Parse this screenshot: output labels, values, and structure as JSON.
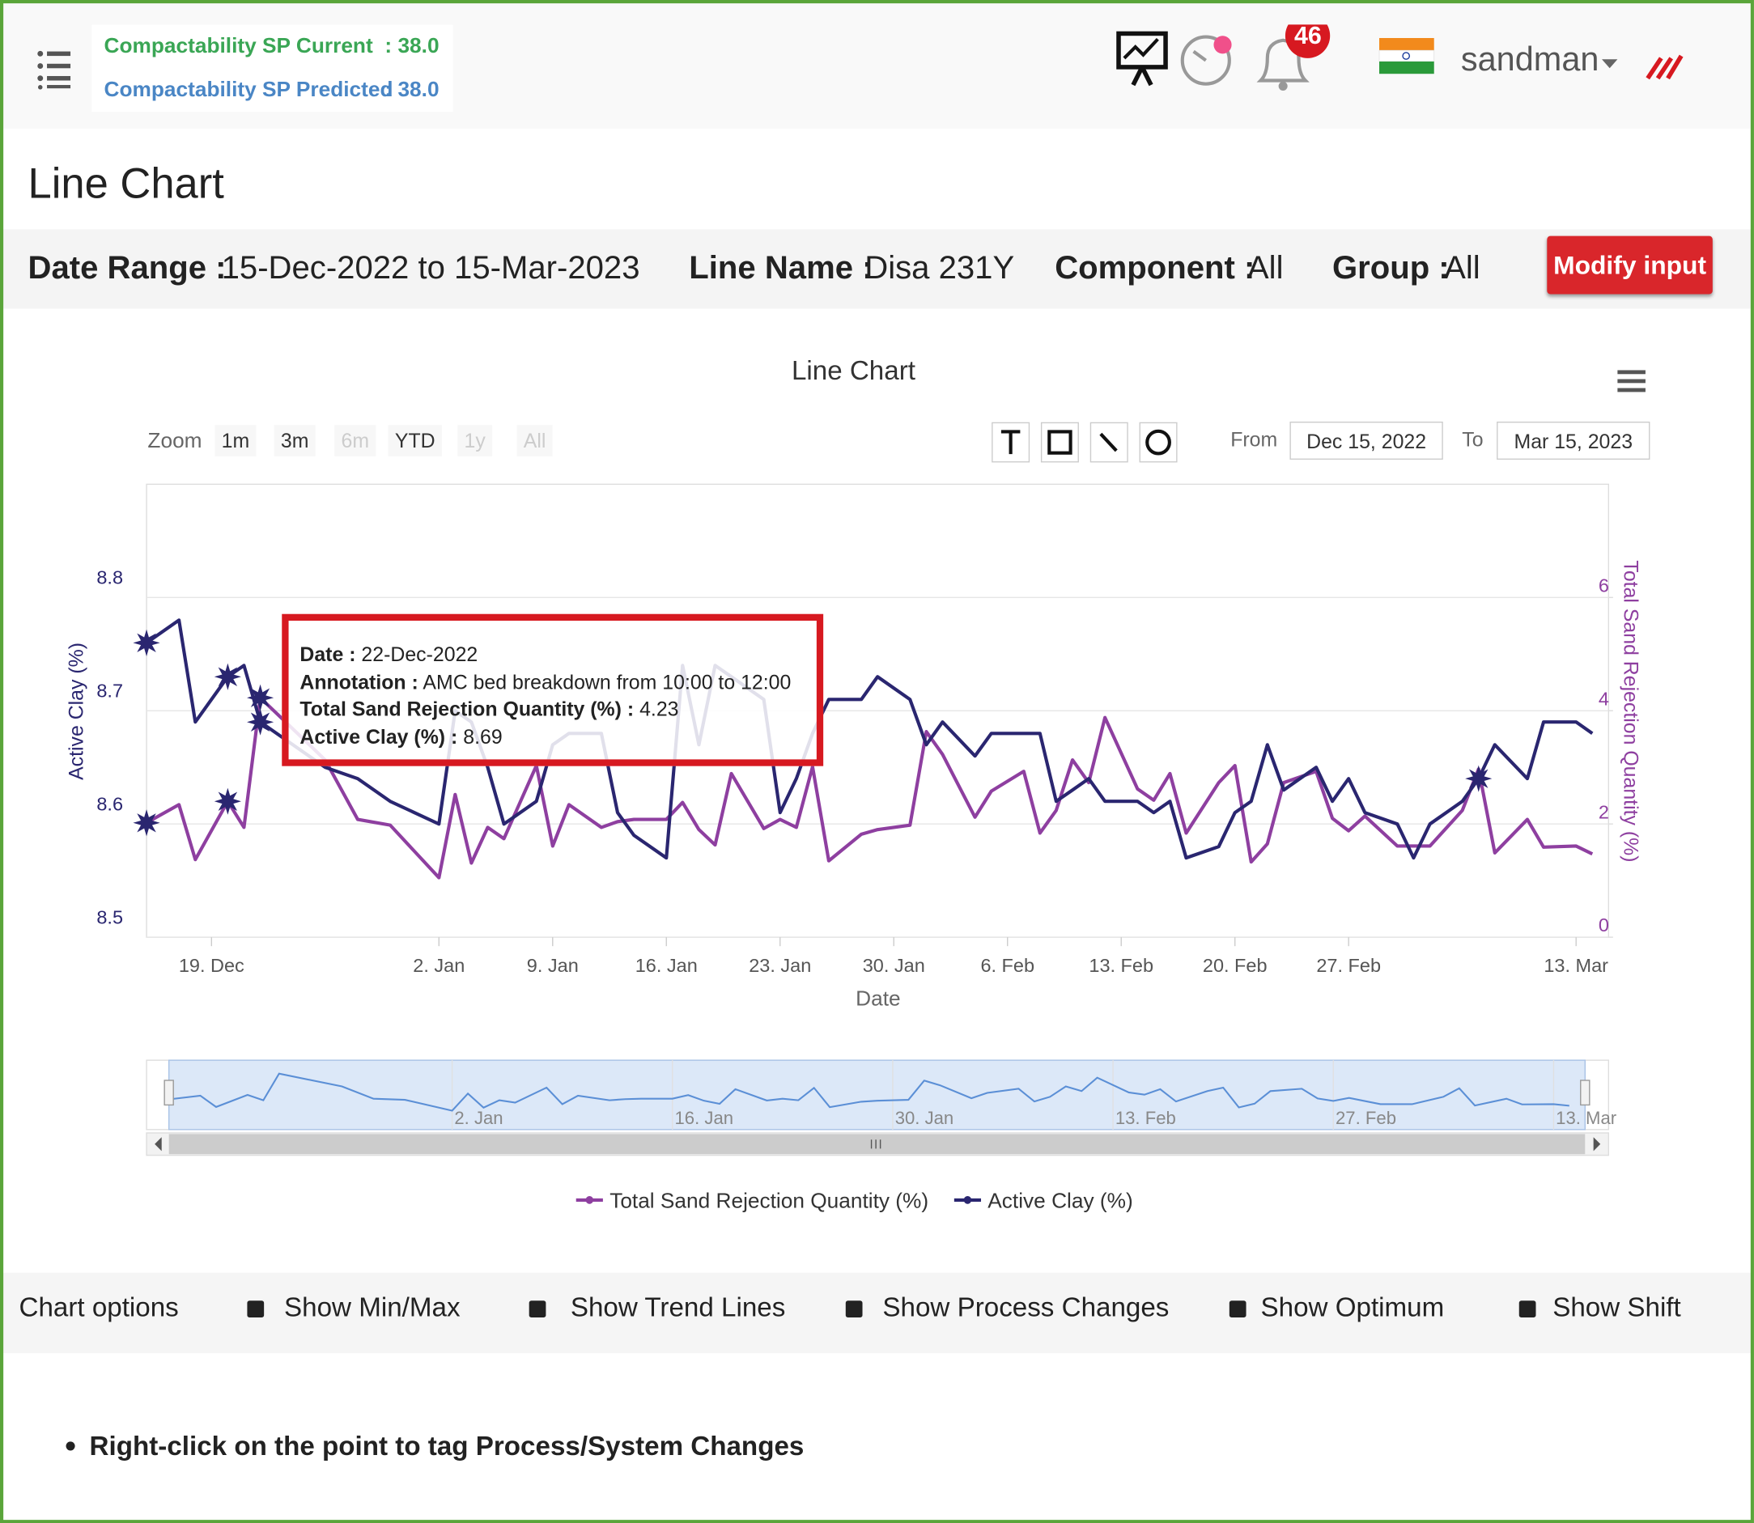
{
  "header": {
    "sp_current_label": "Compactability SP Current",
    "sp_current_value": ": 38.0",
    "sp_predicted_label": "Compactability SP Predicted",
    "sp_predicted_value": ": 38.0",
    "notifications": "46",
    "user": "sandman"
  },
  "page_title": "Line Chart",
  "filters": [
    {
      "label": "Date Range :",
      "value": "15-Dec-2022 to 15-Mar-2023"
    },
    {
      "label": "Line Name :",
      "value": "Disa 231Y"
    },
    {
      "label": "Component :",
      "value": "All"
    },
    {
      "label": "Group :",
      "value": "All"
    }
  ],
  "modify_button": "Modify input",
  "chart_data": {
    "type": "line",
    "title": "Line Chart",
    "range_selector": {
      "zoom_label": "Zoom",
      "buttons": [
        {
          "label": "1m",
          "enabled": true
        },
        {
          "label": "3m",
          "enabled": true
        },
        {
          "label": "6m",
          "enabled": false
        },
        {
          "label": "YTD",
          "enabled": true
        },
        {
          "label": "1y",
          "enabled": false
        },
        {
          "label": "All",
          "enabled": false
        }
      ],
      "from_label": "From",
      "from": "Dec 15, 2022",
      "to_label": "To",
      "to": "Mar 15, 2023"
    },
    "x": [
      "2022-12-15",
      "2022-12-17",
      "2022-12-18",
      "2022-12-20",
      "2022-12-21",
      "2022-12-22",
      "2022-12-26",
      "2022-12-28",
      "2022-12-30",
      "2023-01-02",
      "2023-01-03",
      "2023-01-04",
      "2023-01-05",
      "2023-01-06",
      "2023-01-08",
      "2023-01-09",
      "2023-01-10",
      "2023-01-12",
      "2023-01-13",
      "2023-01-14",
      "2023-01-16",
      "2023-01-17",
      "2023-01-18",
      "2023-01-19",
      "2023-01-20",
      "2023-01-22",
      "2023-01-23",
      "2023-01-24",
      "2023-01-25",
      "2023-01-26",
      "2023-01-28",
      "2023-01-29",
      "2023-01-31",
      "2023-02-01",
      "2023-02-02",
      "2023-02-04",
      "2023-02-05",
      "2023-02-07",
      "2023-02-08",
      "2023-02-09",
      "2023-02-10",
      "2023-02-11",
      "2023-02-12",
      "2023-02-14",
      "2023-02-15",
      "2023-02-16",
      "2023-02-17",
      "2023-02-19",
      "2023-02-20",
      "2023-02-21",
      "2023-02-22",
      "2023-02-23",
      "2023-02-25",
      "2023-02-26",
      "2023-02-27",
      "2023-02-28",
      "2023-03-02",
      "2023-03-03",
      "2023-03-04",
      "2023-03-06",
      "2023-03-07",
      "2023-03-08",
      "2023-03-10",
      "2023-03-11",
      "2023-03-13",
      "2023-03-14"
    ],
    "series": [
      {
        "name": "Total Sand Rejection Quantity (%)",
        "color": "#8e3fa0",
        "axis": "y2",
        "annotated": [
          0,
          3,
          5
        ],
        "values": [
          2.02,
          2.34,
          1.37,
          2.4,
          1.94,
          4.23,
          3.13,
          2.08,
          1.98,
          1.05,
          2.52,
          1.31,
          1.94,
          1.74,
          3.03,
          1.61,
          2.34,
          1.94,
          2.04,
          2.08,
          2.08,
          2.38,
          1.9,
          1.63,
          2.89,
          1.92,
          2.08,
          1.94,
          3.01,
          1.35,
          1.82,
          1.9,
          1.98,
          3.63,
          3.23,
          2.12,
          2.58,
          2.93,
          1.84,
          2.24,
          3.13,
          2.73,
          3.88,
          2.62,
          2.42,
          2.89,
          1.84,
          2.73,
          3.03,
          1.33,
          1.65,
          2.73,
          2.93,
          2.1,
          1.88,
          2.14,
          1.61,
          1.61,
          1.61,
          2.24,
          2.97,
          1.49,
          2.08,
          1.59,
          1.61,
          1.47
        ]
      },
      {
        "name": "Active Clay (%)",
        "color": "#2a2670",
        "annotated": [
          0,
          3,
          5,
          60
        ],
        "values": [
          8.76,
          8.78,
          8.69,
          8.73,
          8.74,
          8.69,
          8.65,
          8.64,
          8.62,
          8.6,
          8.7,
          8.69,
          8.65,
          8.6,
          8.62,
          8.67,
          8.68,
          8.68,
          8.61,
          8.59,
          8.57,
          8.74,
          8.67,
          8.74,
          8.73,
          8.71,
          8.61,
          8.64,
          8.68,
          8.71,
          8.71,
          8.73,
          8.71,
          8.67,
          8.69,
          8.66,
          8.68,
          8.68,
          8.68,
          8.62,
          8.63,
          8.64,
          8.62,
          8.62,
          8.61,
          8.62,
          8.57,
          8.58,
          8.61,
          8.62,
          8.67,
          8.63,
          8.65,
          8.62,
          8.64,
          8.61,
          8.6,
          8.57,
          8.6,
          8.62,
          8.64,
          8.67,
          8.64,
          8.69,
          8.69,
          8.68
        ]
      }
    ],
    "xlabel": "Date",
    "ylabel": "Active Clay (%)",
    "y2label": "Total Sand Rejection Quantity (%)",
    "xlim": [
      "2022-12-15",
      "2023-03-15"
    ],
    "xticks": [
      {
        "value": "2022-12-19",
        "label": "19. Dec"
      },
      {
        "value": "2023-01-02",
        "label": "2. Jan"
      },
      {
        "value": "2023-01-09",
        "label": "9. Jan"
      },
      {
        "value": "2023-01-16",
        "label": "16. Jan"
      },
      {
        "value": "2023-01-23",
        "label": "23. Jan"
      },
      {
        "value": "2023-01-30",
        "label": "30. Jan"
      },
      {
        "value": "2023-02-06",
        "label": "6. Feb"
      },
      {
        "value": "2023-02-13",
        "label": "13. Feb"
      },
      {
        "value": "2023-02-20",
        "label": "20. Feb"
      },
      {
        "value": "2023-02-27",
        "label": "27. Feb"
      },
      {
        "value": "2023-03-13",
        "label": "13. Mar"
      }
    ],
    "ylim": [
      8.5,
      8.9
    ],
    "yticks": [
      8.5,
      8.6,
      8.7,
      8.8
    ],
    "y2lim": [
      0,
      8
    ],
    "y2ticks": [
      0,
      2,
      4,
      6
    ],
    "grid": true,
    "annotation": {
      "rows": [
        {
          "label": "Date :",
          "value": "22-Dec-2022"
        },
        {
          "label": "Annotation :",
          "value": "AMC bed breakdown from 10:00 to 12:00"
        },
        {
          "label": "Total Sand Rejection Quantity (%) :",
          "value": 4.23
        },
        {
          "label": "Active Clay (%) :",
          "value": 8.69
        }
      ]
    },
    "navigator": {
      "ticks": [
        {
          "value": "2023-01-02",
          "label": "2. Jan"
        },
        {
          "value": "2023-01-16",
          "label": "16. Jan"
        },
        {
          "value": "2023-01-30",
          "label": "30. Jan"
        },
        {
          "value": "2023-02-13",
          "label": "13. Feb"
        },
        {
          "value": "2023-02-27",
          "label": "27. Feb"
        },
        {
          "value": "2023-03-13",
          "label": "13. Mar"
        }
      ]
    }
  },
  "chart_options": {
    "title": "Chart options",
    "items": [
      "Show Min/Max",
      "Show Trend Lines",
      "Show Process Changes",
      "Show Optimum",
      "Show Shift"
    ]
  },
  "note": "Right-click on the point to tag Process/System Changes"
}
